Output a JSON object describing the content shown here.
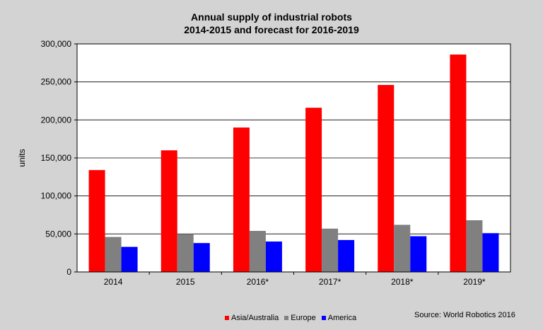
{
  "chart_data": {
    "type": "bar",
    "title": "Annual supply of industrial robots",
    "subtitle": "2014-2015 and forecast for 2016-2019",
    "ylabel": "units",
    "xlabel": "",
    "categories": [
      "2014",
      "2015",
      "2016*",
      "2017*",
      "2018*",
      "2019*"
    ],
    "series": [
      {
        "name": "Asia/Australia",
        "color": "#ff0000",
        "values": [
          134000,
          160000,
          190000,
          216000,
          246000,
          286000
        ]
      },
      {
        "name": "Europe",
        "color": "#808080",
        "values": [
          46000,
          50000,
          54000,
          57000,
          62000,
          68000
        ]
      },
      {
        "name": "America",
        "color": "#0000ff",
        "values": [
          33000,
          38000,
          40000,
          42000,
          47000,
          51000
        ]
      }
    ],
    "ylim": [
      0,
      300000
    ],
    "yticks": [
      0,
      50000,
      100000,
      150000,
      200000,
      250000,
      300000
    ],
    "ytick_labels": [
      "0",
      "50,000",
      "100,000",
      "150,000",
      "200,000",
      "250,000",
      "300,000"
    ],
    "grid": true,
    "legend_position": "bottom",
    "source": "Source: World Robotics 2016"
  }
}
